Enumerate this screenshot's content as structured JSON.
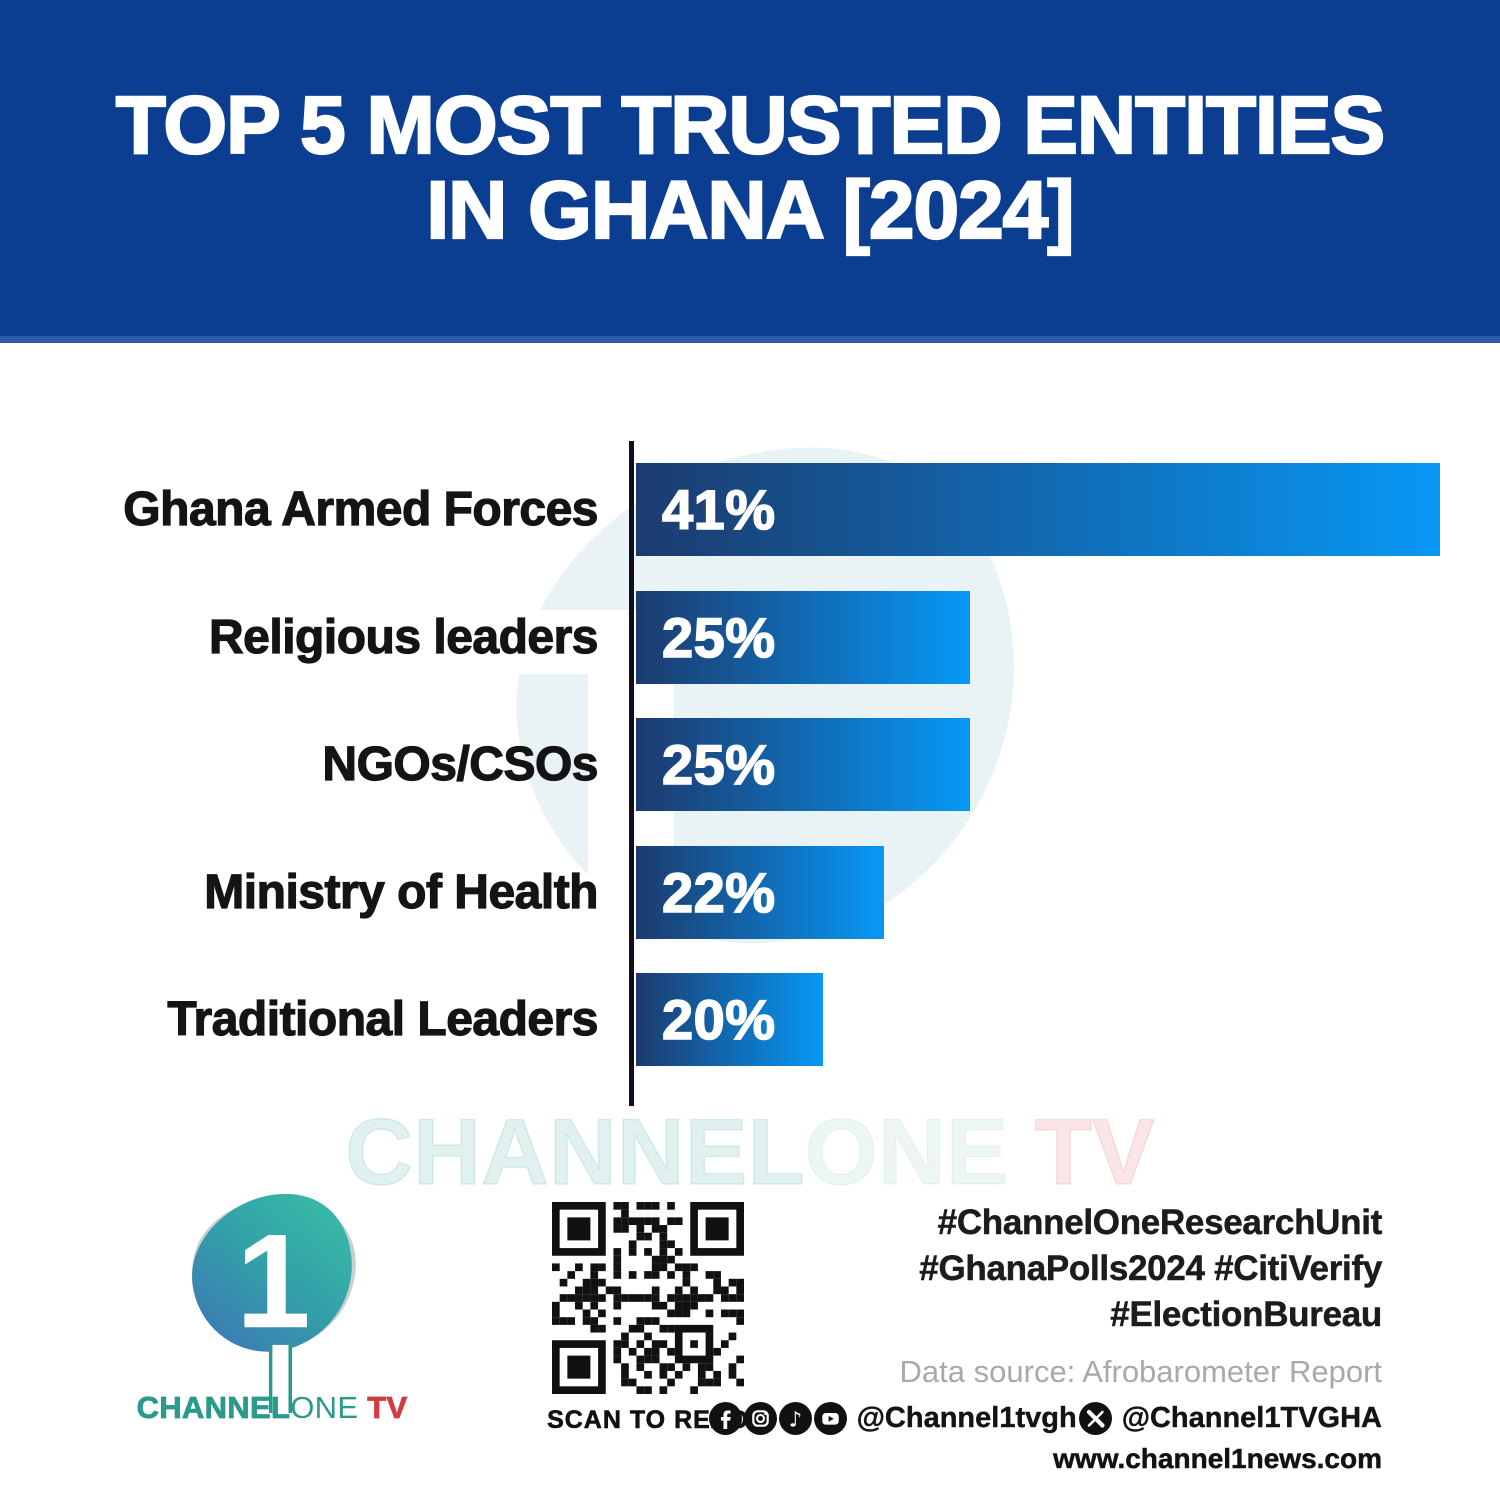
{
  "header": {
    "title_line1": "TOP 5 MOST TRUSTED ENTITIES",
    "title_line2": "IN GHANA [2024]",
    "bg_color": "#0b3d91",
    "text_color": "#ffffff"
  },
  "chart_data": {
    "type": "bar",
    "orientation": "horizontal",
    "title": "TOP 5 MOST TRUSTED ENTITIES IN GHANA [2024]",
    "categories": [
      "Ghana Armed Forces",
      "Religious leaders",
      "NGOs/CSOs",
      "Ministry of Health",
      "Traditional Leaders"
    ],
    "values": [
      41,
      25,
      25,
      22,
      20
    ],
    "unit": "%",
    "value_labels": [
      "41%",
      "25%",
      "25%",
      "22%",
      "20%"
    ],
    "bar_gradient_start": "#1c3b6e",
    "bar_gradient_end": "#0798f5",
    "axis_color": "#0e0e1c",
    "grid": false,
    "legend": false,
    "bars_drawn_width_pct_of_max": [
      100,
      41.5,
      41.5,
      30.8,
      23.3
    ],
    "source": "Afrobarometer Report"
  },
  "watermark": {
    "channel": "CHANNEL",
    "one": "ONE",
    "tv": " TV"
  },
  "footer": {
    "logo": {
      "symbol": "1",
      "wordmark_channel": "CHANNEL",
      "wordmark_one": "ONE",
      "wordmark_tv": " TV",
      "teal": "#2a9a8c",
      "red": "#d43a42"
    },
    "qr_caption": "SCAN TO READ",
    "hashtags": [
      "#ChannelOneResearchUnit",
      "#GhanaPolls2024 #CitiVerify",
      "#ElectionBureau"
    ],
    "data_source": "Data source: Afrobarometer Report",
    "social": {
      "icons": [
        "facebook-icon",
        "instagram-icon",
        "tiktok-icon",
        "youtube-icon",
        "x-icon"
      ],
      "handle_primary": "@Channel1tvgh",
      "handle_x": "@Channel1TVGHA"
    },
    "website": "www.channel1news.com"
  }
}
